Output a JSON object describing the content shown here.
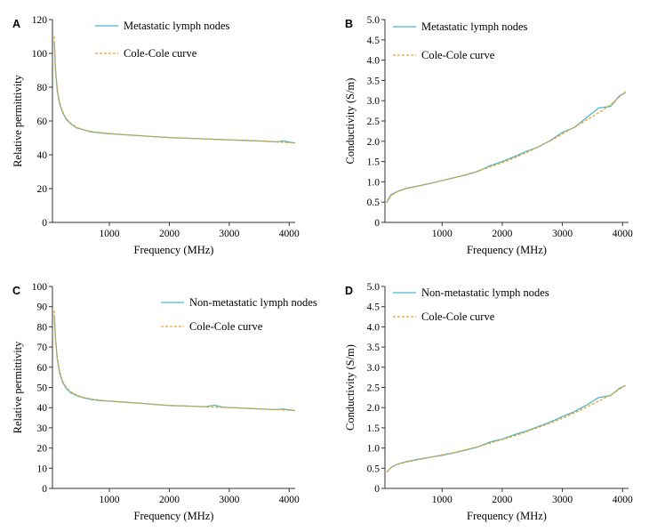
{
  "colors": {
    "measured": "#49b8cf",
    "fit": "#f0a020",
    "axis": "#333333"
  },
  "chart_data": [
    {
      "panel": "A",
      "type": "line",
      "xlabel": "Frequency (MHz)",
      "ylabel": "Relative permittivity",
      "xlim": [
        50,
        4100
      ],
      "ylim": [
        0,
        120
      ],
      "xticks": [
        1000,
        2000,
        3000,
        4000
      ],
      "yticks": [
        0,
        20,
        40,
        60,
        80,
        100,
        120
      ],
      "ytick_labels": [
        "0",
        "20",
        "40",
        "60",
        "80",
        "100",
        "120"
      ],
      "legend": "top-left",
      "series": [
        {
          "name": "Metastatic lymph nodes",
          "style": "solid",
          "color": "#49b8cf",
          "x": [
            80,
            100,
            130,
            170,
            220,
            280,
            350,
            450,
            550,
            700,
            850,
            1000,
            1200,
            1500,
            1800,
            2000,
            2300,
            2600,
            2900,
            3200,
            3500,
            3800,
            3900,
            4000,
            4100
          ],
          "y": [
            107,
            90,
            78,
            70,
            65,
            61,
            58.5,
            56,
            55,
            53.5,
            53,
            52.5,
            52,
            51.3,
            50.6,
            50.2,
            49.8,
            49.4,
            49,
            48.6,
            48.2,
            47.7,
            48.2,
            47.5,
            47
          ]
        },
        {
          "name": "Cole-Cole curve",
          "style": "dashed",
          "color": "#f0a020",
          "x": [
            80,
            100,
            130,
            170,
            220,
            280,
            350,
            450,
            550,
            700,
            850,
            1000,
            1200,
            1500,
            1800,
            2000,
            2300,
            2600,
            2900,
            3200,
            3500,
            3800,
            4100
          ],
          "y": [
            110,
            92,
            79,
            71,
            65.5,
            61.5,
            58.8,
            56.3,
            55,
            53.8,
            53.1,
            52.6,
            52,
            51.3,
            50.6,
            50.2,
            49.8,
            49.3,
            48.9,
            48.5,
            48.1,
            47.6,
            47
          ]
        }
      ]
    },
    {
      "panel": "B",
      "type": "line",
      "xlabel": "Frequency (MHz)",
      "ylabel": "Conductivity (S/m)",
      "xlim": [
        50,
        4100
      ],
      "ylim": [
        0,
        5
      ],
      "xticks": [
        1000,
        2000,
        3000,
        4000
      ],
      "yticks": [
        0,
        0.5,
        1,
        1.5,
        2,
        2.5,
        3,
        3.5,
        4,
        4.5,
        5
      ],
      "ytick_labels": [
        "0",
        "0.5",
        "1.0",
        "1.5",
        "2.0",
        "2.5",
        "3.0",
        "3.5",
        "4.0",
        "4.5",
        "5.0"
      ],
      "legend": "top-left",
      "series": [
        {
          "name": "Metastatic lymph nodes",
          "style": "solid",
          "color": "#49b8cf",
          "x": [
            80,
            150,
            250,
            400,
            600,
            800,
            1000,
            1200,
            1400,
            1600,
            1800,
            2000,
            2200,
            2400,
            2600,
            2800,
            3000,
            3200,
            3400,
            3600,
            3800,
            3950,
            4050
          ],
          "y": [
            0.5,
            0.68,
            0.76,
            0.84,
            0.9,
            0.96,
            1.03,
            1.1,
            1.17,
            1.26,
            1.4,
            1.5,
            1.62,
            1.75,
            1.86,
            2.02,
            2.22,
            2.34,
            2.58,
            2.82,
            2.86,
            3.12,
            3.2
          ]
        },
        {
          "name": "Cole-Cole curve",
          "style": "dashed",
          "color": "#f0a020",
          "x": [
            80,
            150,
            250,
            400,
            600,
            800,
            1000,
            1200,
            1400,
            1600,
            1800,
            2000,
            2200,
            2400,
            2600,
            2800,
            3000,
            3200,
            3400,
            3600,
            3800,
            4050
          ],
          "y": [
            0.48,
            0.66,
            0.75,
            0.83,
            0.89,
            0.96,
            1.03,
            1.1,
            1.18,
            1.27,
            1.37,
            1.47,
            1.59,
            1.72,
            1.86,
            2.01,
            2.18,
            2.35,
            2.52,
            2.7,
            2.9,
            3.23
          ]
        }
      ]
    },
    {
      "panel": "C",
      "type": "line",
      "xlabel": "Frequency (MHz)",
      "ylabel": "Relative permittivity",
      "xlim": [
        50,
        4100
      ],
      "ylim": [
        0,
        100
      ],
      "xticks": [
        1000,
        2000,
        3000,
        4000
      ],
      "yticks": [
        0,
        10,
        20,
        30,
        40,
        50,
        60,
        70,
        80,
        90,
        100
      ],
      "ytick_labels": [
        "0",
        "10",
        "20",
        "30",
        "40",
        "50",
        "60",
        "70",
        "80",
        "90",
        "100"
      ],
      "legend": "top-right",
      "series": [
        {
          "name": "Non-metastatic lymph nodes",
          "style": "solid",
          "color": "#49b8cf",
          "x": [
            80,
            100,
            130,
            170,
            220,
            280,
            350,
            450,
            550,
            700,
            850,
            1000,
            1200,
            1500,
            1800,
            2000,
            2300,
            2600,
            2750,
            2900,
            3200,
            3500,
            3800,
            3900,
            4100
          ],
          "y": [
            86,
            74,
            64,
            57,
            52.5,
            49.5,
            47.5,
            46,
            45,
            44,
            43.5,
            43.2,
            42.8,
            42.2,
            41.5,
            41,
            40.8,
            40.5,
            41.2,
            40.2,
            39.8,
            39.4,
            39,
            39.3,
            38.5
          ]
        },
        {
          "name": "Cole-Cole curve",
          "style": "dashed",
          "color": "#f0a020",
          "x": [
            80,
            100,
            130,
            170,
            220,
            280,
            350,
            450,
            550,
            700,
            850,
            1000,
            1200,
            1500,
            1800,
            2000,
            2300,
            2600,
            2900,
            3200,
            3500,
            3800,
            4100
          ],
          "y": [
            88,
            75,
            65,
            58,
            53,
            50,
            48,
            46.3,
            45.2,
            44.3,
            43.7,
            43.3,
            42.8,
            42.2,
            41.5,
            41.1,
            40.7,
            40.4,
            40.1,
            39.8,
            39.4,
            39,
            38.6
          ]
        }
      ]
    },
    {
      "panel": "D",
      "type": "line",
      "xlabel": "Frequency (MHz)",
      "ylabel": "Conductivity (S/m)",
      "xlim": [
        50,
        4100
      ],
      "ylim": [
        0,
        5
      ],
      "xticks": [
        1000,
        2000,
        3000,
        4000
      ],
      "yticks": [
        0,
        0.5,
        1,
        1.5,
        2,
        2.5,
        3,
        3.5,
        4,
        4.5,
        5
      ],
      "ytick_labels": [
        "0",
        "0.5",
        "1.0",
        "1.5",
        "2.0",
        "2.5",
        "3.0",
        "3.5",
        "4.0",
        "4.5",
        "5.0"
      ],
      "legend": "top-left",
      "series": [
        {
          "name": "Non-metastatic lymph nodes",
          "style": "solid",
          "color": "#49b8cf",
          "x": [
            80,
            150,
            250,
            400,
            600,
            800,
            1000,
            1200,
            1400,
            1600,
            1800,
            2000,
            2200,
            2400,
            2600,
            2800,
            3000,
            3200,
            3400,
            3600,
            3800,
            3950,
            4050
          ],
          "y": [
            0.4,
            0.52,
            0.6,
            0.66,
            0.72,
            0.77,
            0.82,
            0.88,
            0.95,
            1.03,
            1.15,
            1.22,
            1.33,
            1.42,
            1.53,
            1.64,
            1.78,
            1.9,
            2.06,
            2.25,
            2.3,
            2.48,
            2.55
          ]
        },
        {
          "name": "Cole-Cole curve",
          "style": "dashed",
          "color": "#f0a020",
          "x": [
            80,
            150,
            250,
            400,
            600,
            800,
            1000,
            1200,
            1400,
            1600,
            1800,
            2000,
            2200,
            2400,
            2600,
            2800,
            3000,
            3200,
            3400,
            3600,
            3800,
            4050
          ],
          "y": [
            0.4,
            0.52,
            0.59,
            0.65,
            0.71,
            0.77,
            0.83,
            0.89,
            0.96,
            1.04,
            1.12,
            1.21,
            1.3,
            1.4,
            1.51,
            1.62,
            1.74,
            1.87,
            2.01,
            2.16,
            2.31,
            2.55
          ]
        }
      ]
    }
  ]
}
